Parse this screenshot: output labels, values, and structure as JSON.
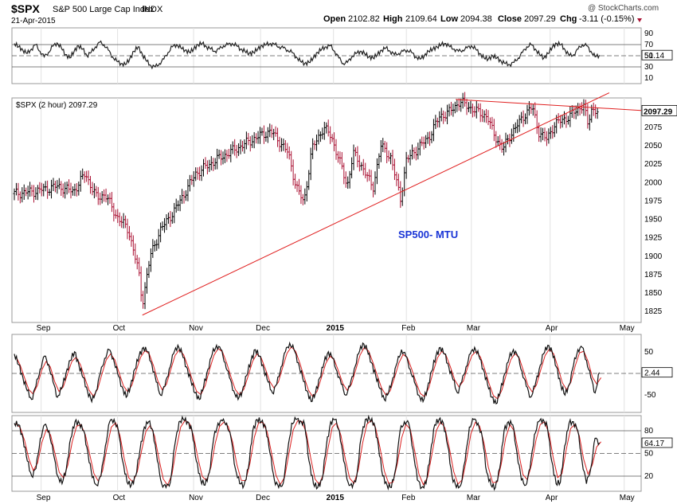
{
  "header": {
    "symbol": "$SPX",
    "name": "S&P 500 Large Cap Index",
    "exchange": "INDX",
    "date": "21-Apr-2015",
    "watermark": "@ StockCharts.com",
    "open_label": "Open",
    "open_value": "2102.82",
    "high_label": "High",
    "high_value": "2109.64",
    "low_label": "Low",
    "low_value": "2094.38",
    "close_label": "Close",
    "close_value": "2097.29",
    "chg_label": "Chg",
    "chg_value": "-3.11 (-0.15%)"
  },
  "colors": {
    "price_up": "#000000",
    "price_down": "#aa1133",
    "trendline": "#e02020",
    "annotation": "#1a35d6",
    "signal": "#dd2222"
  },
  "chart_data": [
    {
      "type": "line",
      "panel": "rsi",
      "title": "RSI",
      "ylim": [
        0,
        100
      ],
      "yticks": [
        90,
        70,
        50,
        30,
        10
      ],
      "reference_lines": [
        70,
        30
      ],
      "dashed_line": 50,
      "last_value": "51.14",
      "values": [
        72,
        66,
        60,
        54,
        62,
        70,
        58,
        48,
        56,
        67,
        73,
        64,
        52,
        46,
        58,
        68,
        62,
        50,
        56,
        66,
        74,
        70,
        60,
        48,
        40,
        36,
        34,
        44,
        58,
        66,
        52,
        40,
        32,
        30,
        36,
        44,
        56,
        66,
        70,
        64,
        60,
        56,
        62,
        70,
        72,
        66,
        62,
        58,
        62,
        68,
        70,
        72,
        68,
        62,
        58,
        54,
        56,
        62,
        68,
        70,
        72,
        70,
        66,
        64,
        60,
        56,
        48,
        40,
        36,
        38,
        46,
        56,
        62,
        66,
        68,
        58,
        46,
        36,
        38,
        48,
        54,
        58,
        54,
        48,
        46,
        52,
        60,
        64,
        58,
        52,
        54,
        58,
        60,
        56,
        48,
        44,
        50,
        58,
        62,
        66,
        70,
        72,
        66,
        62,
        58,
        60,
        64,
        68,
        62,
        54,
        46,
        44,
        50,
        46,
        40,
        36,
        34,
        38,
        46,
        56,
        66,
        70,
        62,
        52,
        46,
        54,
        66,
        72,
        70,
        60,
        50,
        52,
        62,
        70,
        68,
        58,
        48,
        51
      ]
    },
    {
      "type": "bar",
      "panel": "price",
      "title": "$SPX (2 hour) 2097.29",
      "ylim": [
        1810,
        2115
      ],
      "yticks": [
        2075,
        2050,
        2025,
        2000,
        1975,
        1950,
        1925,
        1900,
        1875,
        1850,
        1825
      ],
      "last_value": "2097.29",
      "annotation": "SP500- MTU",
      "x_labels": [
        "Sep",
        "Oct",
        "Nov",
        "Dec",
        "2015",
        "Feb",
        "Mar",
        "Apr",
        "May"
      ],
      "x_label_dates": [
        0.68,
        2.62,
        4.55,
        6.25,
        8.1,
        9.95,
        11.6,
        13.6,
        15.48
      ],
      "anchors": [
        [
          0,
          1985
        ],
        [
          0.5,
          1988
        ],
        [
          1.1,
          1995
        ],
        [
          1.5,
          1988
        ],
        [
          1.8,
          2012
        ],
        [
          2.1,
          1978
        ],
        [
          2.3,
          1985
        ],
        [
          2.55,
          1958
        ],
        [
          2.9,
          1935
        ],
        [
          3.15,
          1880
        ],
        [
          3.25,
          1836
        ],
        [
          3.45,
          1900
        ],
        [
          3.7,
          1935
        ],
        [
          4.1,
          1965
        ],
        [
          4.6,
          2012
        ],
        [
          5.1,
          2030
        ],
        [
          5.6,
          2045
        ],
        [
          6.1,
          2060
        ],
        [
          6.5,
          2070
        ],
        [
          6.7,
          2058
        ],
        [
          6.95,
          2040
        ],
        [
          7.15,
          1995
        ],
        [
          7.35,
          1972
        ],
        [
          7.55,
          2045
        ],
        [
          7.85,
          2075
        ],
        [
          8.05,
          2062
        ],
        [
          8.25,
          2030
        ],
        [
          8.45,
          1995
        ],
        [
          8.6,
          2040
        ],
        [
          8.85,
          2020
        ],
        [
          9.1,
          1992
        ],
        [
          9.3,
          2050
        ],
        [
          9.55,
          2035
        ],
        [
          9.8,
          1978
        ],
        [
          9.95,
          2030
        ],
        [
          10.2,
          2045
        ],
        [
          10.5,
          2060
        ],
        [
          10.8,
          2090
        ],
        [
          11.05,
          2096
        ],
        [
          11.3,
          2110
        ],
        [
          11.5,
          2104
        ],
        [
          11.75,
          2096
        ],
        [
          12.0,
          2090
        ],
        [
          12.15,
          2068
        ],
        [
          12.4,
          2045
        ],
        [
          12.6,
          2066
        ],
        [
          12.8,
          2080
        ],
        [
          13.0,
          2096
        ],
        [
          13.15,
          2102
        ],
        [
          13.3,
          2070
        ],
        [
          13.5,
          2058
        ],
        [
          13.7,
          2078
        ],
        [
          13.9,
          2085
        ],
        [
          14.1,
          2090
        ],
        [
          14.3,
          2100
        ],
        [
          14.45,
          2106
        ],
        [
          14.55,
          2078
        ],
        [
          14.65,
          2100
        ],
        [
          14.8,
          2097
        ]
      ]
    },
    {
      "type": "line",
      "panel": "oscillator",
      "title": "Oscillator with signal",
      "ylim": [
        -90,
        90
      ],
      "yticks": [
        50,
        -50
      ],
      "dashed_line": 0,
      "last_value": "2.44",
      "values": [
        45,
        20,
        -10,
        -40,
        -60,
        -30,
        10,
        40,
        20,
        -20,
        -55,
        -35,
        0,
        30,
        50,
        20,
        -10,
        -40,
        -65,
        -40,
        0,
        35,
        55,
        35,
        0,
        -30,
        -55,
        -30,
        10,
        40,
        60,
        50,
        20,
        -20,
        -50,
        -30,
        10,
        45,
        65,
        45,
        15,
        -15,
        -45,
        -60,
        -30,
        10,
        45,
        65,
        55,
        25,
        -10,
        -40,
        -60,
        -40,
        -5,
        30,
        55,
        40,
        10,
        -20,
        -45,
        -25,
        15,
        50,
        70,
        55,
        25,
        -10,
        -40,
        -65,
        -45,
        -10,
        25,
        50,
        35,
        5,
        -25,
        -50,
        -30,
        10,
        45,
        70,
        55,
        25,
        -5,
        -35,
        -60,
        -45,
        -10,
        25,
        55,
        40,
        10,
        -20,
        -50,
        -65,
        -35,
        5,
        40,
        60,
        45,
        15,
        -15,
        -45,
        -20,
        15,
        45,
        60,
        40,
        10,
        -25,
        -55,
        -70,
        -40,
        0,
        35,
        55,
        40,
        5,
        -30,
        -55,
        -30,
        10,
        45,
        65,
        50,
        15,
        -25,
        -50,
        -25,
        20,
        55,
        60,
        30,
        -10,
        -45,
        2
      ]
    },
    {
      "type": "line",
      "panel": "stochastic",
      "title": "Slow Stochastics",
      "ylim": [
        0,
        100
      ],
      "yticks": [
        80,
        50,
        20
      ],
      "reference_lines": [
        80,
        20
      ],
      "dashed_line": 50,
      "last_value": "64.17",
      "values": [
        90,
        88,
        70,
        40,
        20,
        30,
        70,
        88,
        80,
        50,
        20,
        10,
        30,
        70,
        92,
        90,
        80,
        50,
        18,
        8,
        20,
        60,
        92,
        95,
        80,
        40,
        12,
        8,
        20,
        55,
        85,
        92,
        80,
        40,
        10,
        5,
        12,
        60,
        92,
        95,
        92,
        80,
        40,
        15,
        8,
        25,
        70,
        90,
        93,
        90,
        70,
        30,
        10,
        8,
        30,
        80,
        95,
        92,
        85,
        50,
        15,
        5,
        10,
        50,
        90,
        95,
        93,
        88,
        40,
        10,
        5,
        15,
        60,
        92,
        95,
        80,
        40,
        12,
        5,
        20,
        70,
        95,
        95,
        90,
        60,
        20,
        8,
        5,
        30,
        80,
        92,
        90,
        55,
        15,
        5,
        10,
        50,
        88,
        95,
        90,
        60,
        20,
        5,
        8,
        40,
        85,
        95,
        90,
        70,
        25,
        8,
        5,
        30,
        80,
        92,
        88,
        50,
        15,
        8,
        30,
        75,
        92,
        95,
        85,
        40,
        10,
        12,
        60,
        90,
        92,
        80,
        40,
        10,
        30,
        70,
        64
      ]
    }
  ]
}
